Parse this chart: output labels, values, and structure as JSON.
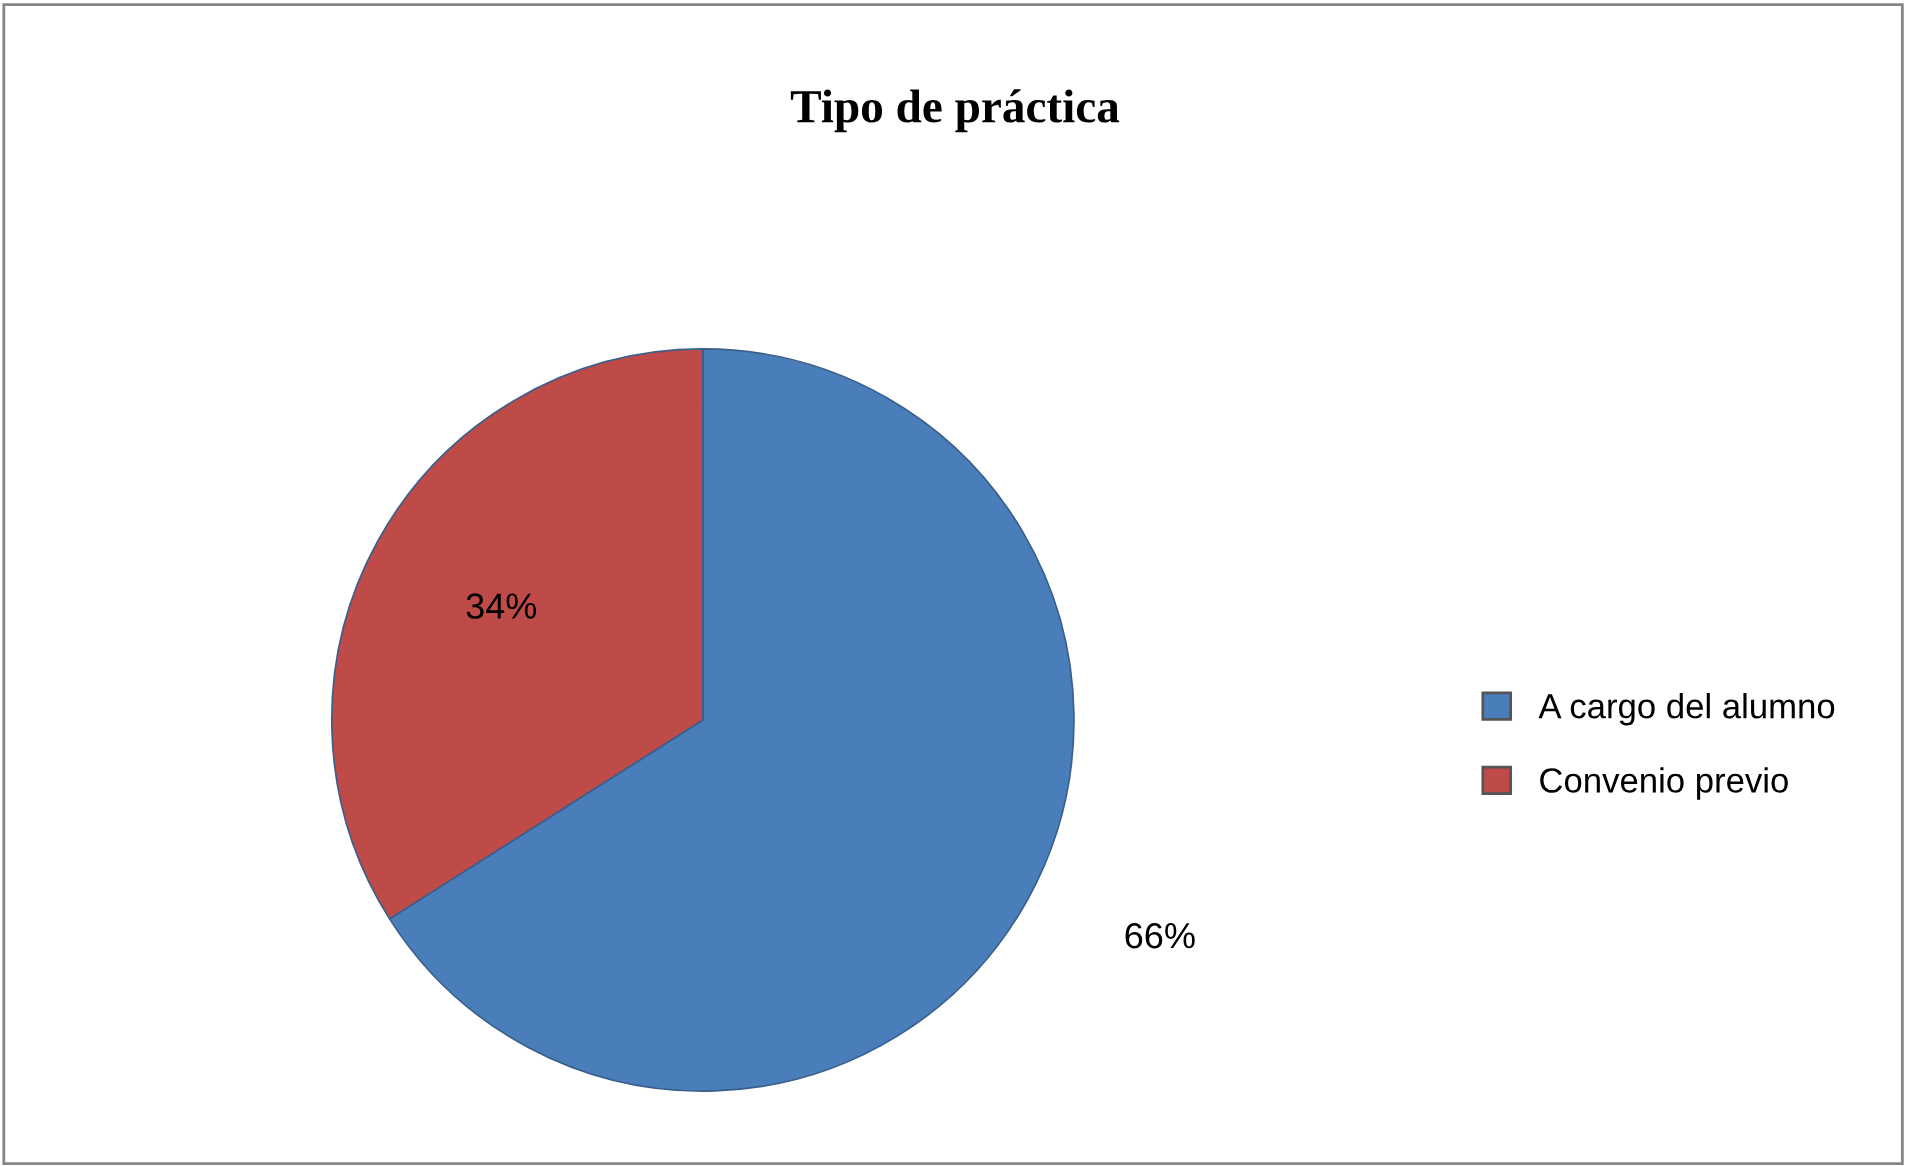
{
  "chart_data": {
    "type": "pie",
    "title": "Tipo de práctica",
    "categories": [
      "A cargo del alumno",
      "Convenio previo"
    ],
    "values": [
      66,
      34
    ],
    "colors": [
      "#4a7ebb",
      "#be4b48"
    ],
    "value_labels": [
      "66%",
      "34%"
    ],
    "legend": "right"
  }
}
